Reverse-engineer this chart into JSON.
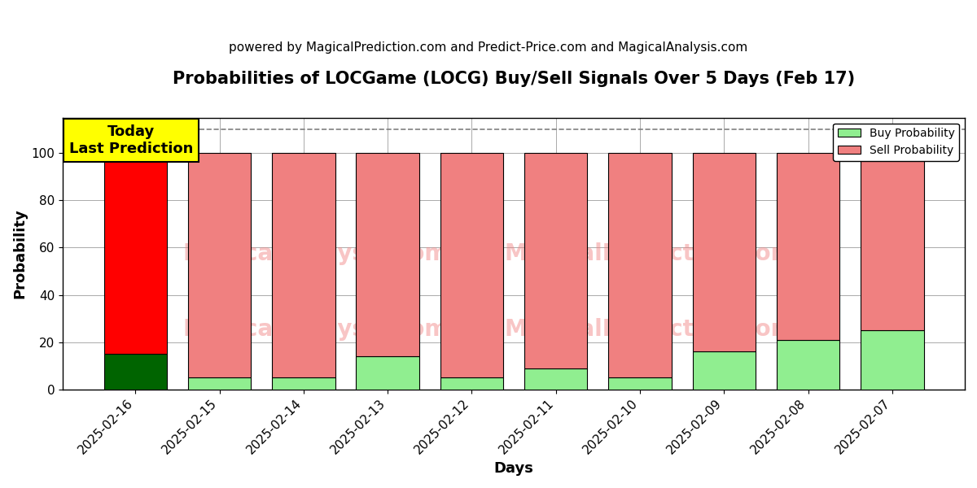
{
  "title": "Probabilities of LOCGame (LOCG) Buy/Sell Signals Over 5 Days (Feb 17)",
  "subtitle": "powered by MagicalPrediction.com and Predict-Price.com and MagicalAnalysis.com",
  "xlabel": "Days",
  "ylabel": "Probability",
  "dates": [
    "2025-02-16",
    "2025-02-15",
    "2025-02-14",
    "2025-02-13",
    "2025-02-12",
    "2025-02-11",
    "2025-02-10",
    "2025-02-09",
    "2025-02-08",
    "2025-02-07"
  ],
  "buy_values": [
    15,
    5,
    5,
    14,
    5,
    9,
    5,
    16,
    21,
    25
  ],
  "sell_values": [
    85,
    95,
    95,
    86,
    95,
    91,
    95,
    84,
    79,
    75
  ],
  "today_bar_buy_color": "#006400",
  "today_bar_sell_color": "#ff0000",
  "other_bar_buy_color": "#90EE90",
  "other_bar_sell_color": "#F08080",
  "bar_edgecolor": "#000000",
  "dashed_line_y": 110,
  "ylim": [
    0,
    115
  ],
  "yticks": [
    0,
    20,
    40,
    60,
    80,
    100
  ],
  "annotation_text": "Today\nLast Prediction",
  "annotation_bg": "#FFFF00",
  "legend_buy_color": "#90EE90",
  "legend_sell_color": "#F08080",
  "grid_color": "#aaaaaa",
  "title_fontsize": 15,
  "subtitle_fontsize": 11,
  "axis_label_fontsize": 13,
  "tick_fontsize": 11,
  "fig_bg": "#ffffff",
  "ax_bg": "#ffffff"
}
